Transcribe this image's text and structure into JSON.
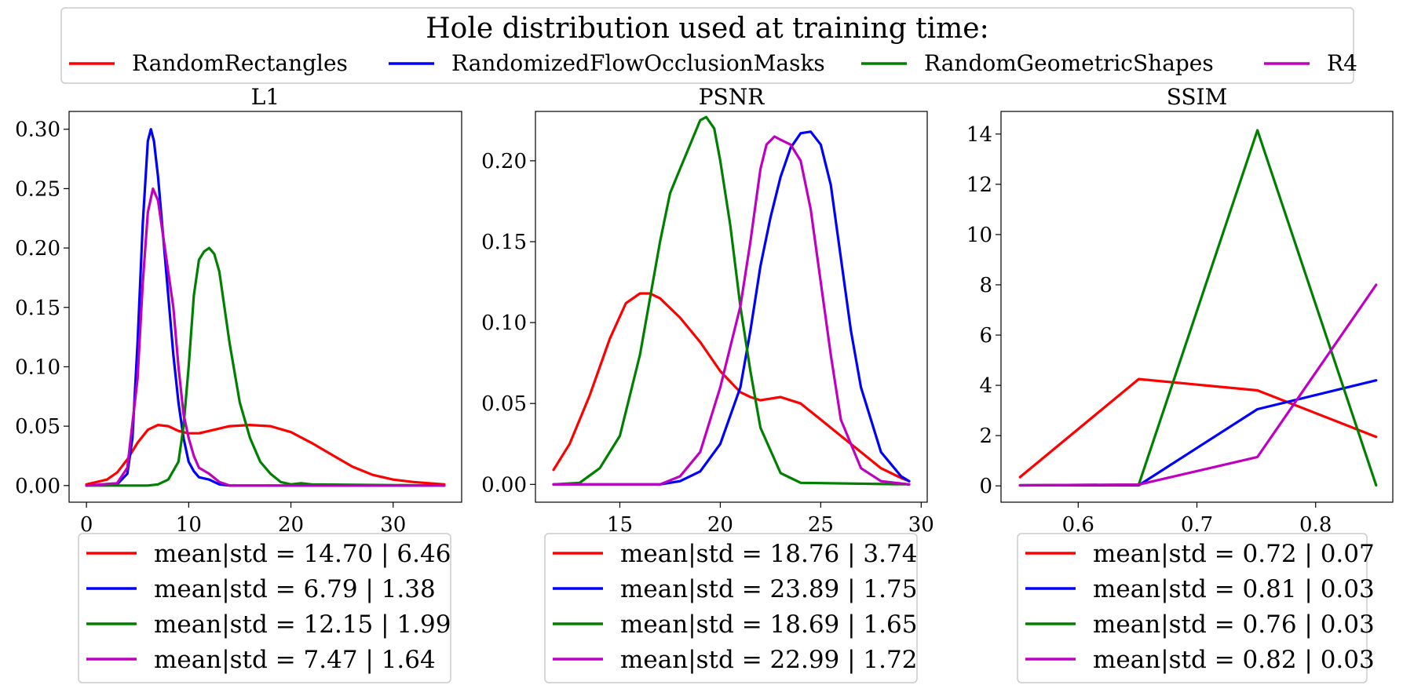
{
  "legend": {
    "title": "Hole distribution used at training time:",
    "entries": [
      {
        "label": "RandomRectangles",
        "color": "#ff0000"
      },
      {
        "label": "RandomizedFlowOcclusionMasks",
        "color": "#0000ff"
      },
      {
        "label": "RandomGeometricShapes",
        "color": "#008000"
      },
      {
        "label": "R4",
        "color": "#c000c0"
      }
    ]
  },
  "chart_data": [
    {
      "type": "line",
      "title": "L1",
      "xlim": [
        -1.7,
        36.7
      ],
      "ylim": [
        -0.014,
        0.315
      ],
      "xticks": [
        0,
        10,
        20,
        30
      ],
      "xtick_labels": [
        "0",
        "10",
        "20",
        "30"
      ],
      "yticks": [
        0,
        0.05,
        0.1,
        0.15,
        0.2,
        0.25,
        0.3
      ],
      "ytick_labels": [
        "0.00",
        "0.05",
        "0.10",
        "0.15",
        "0.20",
        "0.25",
        "0.30"
      ],
      "series": [
        {
          "name": "RandomRectangles",
          "color": "#ff0000",
          "x": [
            0,
            2,
            3,
            4,
            5,
            6,
            7,
            8,
            9,
            10,
            11,
            12,
            14,
            16,
            18,
            20,
            22,
            24,
            26,
            28,
            30,
            32,
            35
          ],
          "y": [
            0.001,
            0.005,
            0.011,
            0.022,
            0.036,
            0.047,
            0.051,
            0.05,
            0.046,
            0.044,
            0.044,
            0.046,
            0.05,
            0.051,
            0.05,
            0.045,
            0.036,
            0.026,
            0.016,
            0.009,
            0.005,
            0.003,
            0.001
          ]
        },
        {
          "name": "RandomizedFlowOcclusionMasks",
          "color": "#0000ff",
          "x": [
            0,
            3,
            4,
            4.5,
            5,
            5.5,
            6,
            6.3,
            6.6,
            7,
            7.5,
            8,
            8.5,
            9,
            9.5,
            10,
            10.5,
            11,
            12,
            13,
            14,
            35
          ],
          "y": [
            0,
            0.001,
            0.01,
            0.04,
            0.12,
            0.22,
            0.29,
            0.3,
            0.29,
            0.26,
            0.21,
            0.16,
            0.11,
            0.07,
            0.04,
            0.02,
            0.012,
            0.007,
            0.005,
            0.001,
            0,
            0
          ]
        },
        {
          "name": "RandomGeometricShapes",
          "color": "#008000",
          "x": [
            0,
            6,
            7,
            8,
            9,
            9.5,
            10,
            10.5,
            11,
            11.5,
            12,
            12.5,
            13,
            14,
            15,
            16,
            17,
            18,
            19,
            20,
            21,
            22,
            35
          ],
          "y": [
            0,
            0,
            0.001,
            0.005,
            0.02,
            0.05,
            0.1,
            0.16,
            0.19,
            0.197,
            0.2,
            0.195,
            0.18,
            0.12,
            0.07,
            0.04,
            0.02,
            0.01,
            0.003,
            0.001,
            0.002,
            0.001,
            0
          ]
        },
        {
          "name": "R4",
          "color": "#c000c0",
          "x": [
            0,
            3,
            4,
            5,
            5.5,
            6,
            6.5,
            7,
            7.5,
            8,
            8.5,
            9,
            9.5,
            10,
            10.5,
            11,
            12,
            13,
            14,
            35
          ],
          "y": [
            0,
            0.002,
            0.015,
            0.09,
            0.17,
            0.23,
            0.25,
            0.24,
            0.21,
            0.18,
            0.15,
            0.1,
            0.06,
            0.04,
            0.025,
            0.015,
            0.01,
            0.003,
            0,
            0
          ]
        }
      ],
      "stats": [
        {
          "text": "mean|std = 14.70 | 6.46",
          "color": "#ff0000"
        },
        {
          "text": "mean|std = 6.79 | 1.38",
          "color": "#0000ff"
        },
        {
          "text": "mean|std = 12.15 | 1.99",
          "color": "#008000"
        },
        {
          "text": "mean|std = 7.47 | 1.64",
          "color": "#c000c0"
        }
      ]
    },
    {
      "type": "line",
      "title": "PSNR",
      "xlim": [
        10.8,
        30.3
      ],
      "ylim": [
        -0.011,
        0.2305
      ],
      "xticks": [
        15,
        20,
        25,
        30
      ],
      "xtick_labels": [
        "15",
        "20",
        "25",
        "30"
      ],
      "yticks": [
        0,
        0.05,
        0.1,
        0.15,
        0.2
      ],
      "ytick_labels": [
        "0.00",
        "0.05",
        "0.10",
        "0.15",
        "0.20"
      ],
      "series": [
        {
          "name": "RandomRectangles",
          "color": "#ff0000",
          "x": [
            11.7,
            12.5,
            13.5,
            14.5,
            15.3,
            16,
            16.5,
            17,
            18,
            19,
            20,
            21,
            21.5,
            22,
            23,
            24,
            25,
            26,
            27,
            28,
            29,
            29.4
          ],
          "y": [
            0.009,
            0.025,
            0.055,
            0.09,
            0.112,
            0.118,
            0.118,
            0.115,
            0.103,
            0.088,
            0.07,
            0.057,
            0.054,
            0.052,
            0.054,
            0.05,
            0.04,
            0.03,
            0.02,
            0.01,
            0.004,
            0.002
          ]
        },
        {
          "name": "RandomizedFlowOcclusionMasks",
          "color": "#0000ff",
          "x": [
            11.7,
            17,
            18,
            19,
            20,
            21,
            21.5,
            22,
            22.5,
            23,
            23.5,
            24,
            24.5,
            25,
            25.5,
            26,
            26.5,
            27,
            28,
            29,
            29.4
          ],
          "y": [
            0,
            0,
            0.002,
            0.008,
            0.025,
            0.06,
            0.095,
            0.135,
            0.165,
            0.19,
            0.208,
            0.217,
            0.218,
            0.21,
            0.185,
            0.14,
            0.095,
            0.06,
            0.02,
            0.005,
            0.002
          ]
        },
        {
          "name": "RandomGeometricShapes",
          "color": "#008000",
          "x": [
            11.7,
            13,
            14,
            15,
            16,
            16.5,
            17,
            17.5,
            18,
            18.5,
            19,
            19.3,
            19.7,
            20,
            20.5,
            21,
            21.5,
            22,
            23,
            24,
            29.4
          ],
          "y": [
            0,
            0.001,
            0.01,
            0.03,
            0.08,
            0.115,
            0.15,
            0.18,
            0.195,
            0.21,
            0.225,
            0.227,
            0.22,
            0.2,
            0.16,
            0.11,
            0.07,
            0.035,
            0.007,
            0.001,
            0
          ]
        },
        {
          "name": "R4",
          "color": "#c000c0",
          "x": [
            11.7,
            17,
            18,
            19,
            20,
            20.5,
            21,
            21.5,
            22,
            22.3,
            22.7,
            23,
            23.5,
            24,
            24.5,
            25,
            25.5,
            26,
            27,
            28,
            29.4
          ],
          "y": [
            0,
            0,
            0.005,
            0.02,
            0.06,
            0.085,
            0.11,
            0.15,
            0.195,
            0.21,
            0.215,
            0.213,
            0.21,
            0.2,
            0.17,
            0.125,
            0.08,
            0.04,
            0.01,
            0.002,
            0
          ]
        }
      ],
      "stats": [
        {
          "text": "mean|std = 18.76 | 3.74",
          "color": "#ff0000"
        },
        {
          "text": "mean|std = 23.89 | 1.75",
          "color": "#0000ff"
        },
        {
          "text": "mean|std = 18.69 | 1.65",
          "color": "#008000"
        },
        {
          "text": "mean|std = 22.99 | 1.72",
          "color": "#c000c0"
        }
      ]
    },
    {
      "type": "line",
      "title": "SSIM",
      "xlim": [
        0.535,
        0.865
      ],
      "ylim": [
        -0.65,
        14.9
      ],
      "xticks": [
        0.6,
        0.7,
        0.8
      ],
      "xtick_labels": [
        "0.6",
        "0.7",
        "0.8"
      ],
      "yticks": [
        0,
        2,
        4,
        6,
        8,
        10,
        12,
        14
      ],
      "ytick_labels": [
        "0",
        "2",
        "4",
        "6",
        "8",
        "10",
        "12",
        "14"
      ],
      "series": [
        {
          "name": "RandomRectangles",
          "color": "#ff0000",
          "x": [
            0.551,
            0.651,
            0.751,
            0.851
          ],
          "y": [
            0.35,
            4.25,
            3.8,
            1.95
          ]
        },
        {
          "name": "RandomizedFlowOcclusionMasks",
          "color": "#0000ff",
          "x": [
            0.551,
            0.651,
            0.751,
            0.851
          ],
          "y": [
            0.02,
            0.02,
            3.05,
            4.2
          ]
        },
        {
          "name": "RandomGeometricShapes",
          "color": "#008000",
          "x": [
            0.551,
            0.651,
            0.751,
            0.851
          ],
          "y": [
            0.02,
            0.05,
            14.15,
            0.02
          ]
        },
        {
          "name": "R4",
          "color": "#c000c0",
          "x": [
            0.551,
            0.651,
            0.751,
            0.851
          ],
          "y": [
            0.02,
            0.05,
            1.15,
            8.0
          ]
        }
      ],
      "stats": [
        {
          "text": "mean|std = 0.72 | 0.07",
          "color": "#ff0000"
        },
        {
          "text": "mean|std = 0.81 | 0.03",
          "color": "#0000ff"
        },
        {
          "text": "mean|std = 0.76 | 0.03",
          "color": "#008000"
        },
        {
          "text": "mean|std = 0.82 | 0.03",
          "color": "#c000c0"
        }
      ]
    }
  ]
}
